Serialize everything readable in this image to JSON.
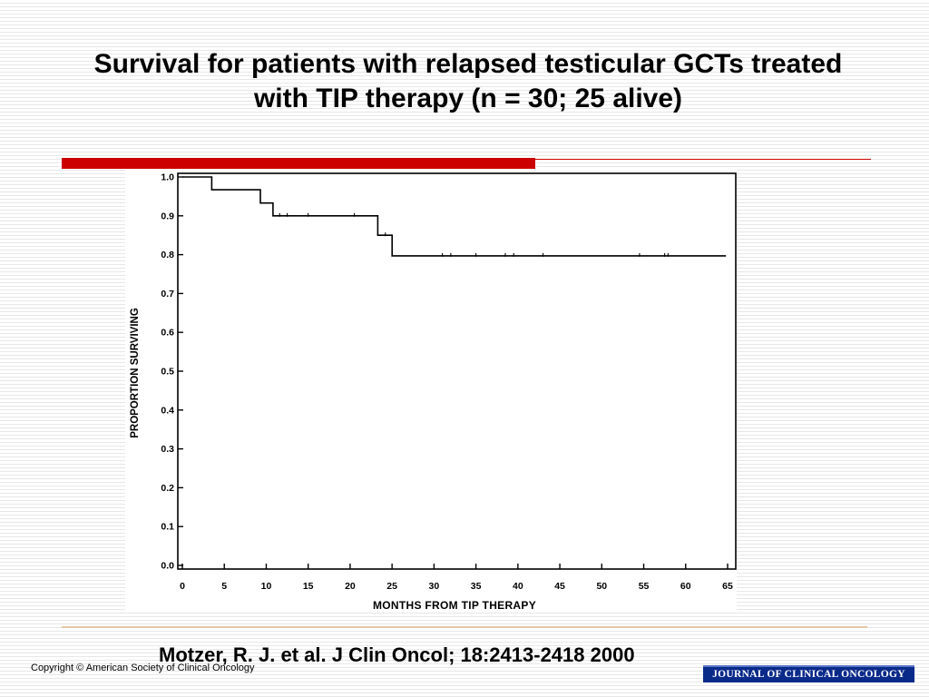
{
  "slide": {
    "title_line1": "Survival for patients with relapsed testicular GCTs treated",
    "title_line2": "with TIP therapy (n = 30; 25 alive)",
    "accent_color": "#cc0000",
    "citation": "Motzer, R. J. et al. J Clin Oncol; 18:2413-2418 2000",
    "copyright": "Copyright © American Society of Clinical Oncology",
    "journal_badge": "JOURNAL OF CLINICAL ONCOLOGY",
    "journal_color": "#0a2a8a"
  },
  "chart_data": {
    "type": "line",
    "step": true,
    "xlabel": "MONTHS FROM TIP THERAPY",
    "ylabel": "PROPORTION SURVIVING",
    "xlim": [
      0,
      65
    ],
    "ylim": [
      0.0,
      1.0
    ],
    "x_ticks": [
      "0",
      "5",
      "10",
      "15",
      "20",
      "25",
      "30",
      "35",
      "40",
      "45",
      "50",
      "55",
      "60",
      "65"
    ],
    "y_ticks": [
      "0.0",
      "0.1",
      "0.2",
      "0.3",
      "0.4",
      "0.5",
      "0.6",
      "0.7",
      "0.8",
      "0.9",
      "1.0"
    ],
    "grid": false,
    "series": [
      {
        "x": [
          0,
          3.5,
          3.5,
          9.3,
          9.3,
          10.8,
          10.8,
          23.3,
          23.3,
          25.0,
          25.0,
          64.8
        ],
        "y": [
          1.0,
          1.0,
          0.967,
          0.967,
          0.933,
          0.933,
          0.9,
          0.9,
          0.85,
          0.85,
          0.797,
          0.797
        ],
        "censored": [
          [
            11.6,
            0.9
          ],
          [
            12.5,
            0.9
          ],
          [
            15.0,
            0.9
          ],
          [
            20.5,
            0.9
          ],
          [
            24.2,
            0.85
          ],
          [
            31.0,
            0.797
          ],
          [
            32.0,
            0.797
          ],
          [
            35.0,
            0.797
          ],
          [
            38.5,
            0.797
          ],
          [
            39.5,
            0.797
          ],
          [
            43.0,
            0.797
          ],
          [
            54.5,
            0.797
          ],
          [
            57.5,
            0.797
          ],
          [
            57.9,
            0.797
          ]
        ]
      }
    ]
  }
}
